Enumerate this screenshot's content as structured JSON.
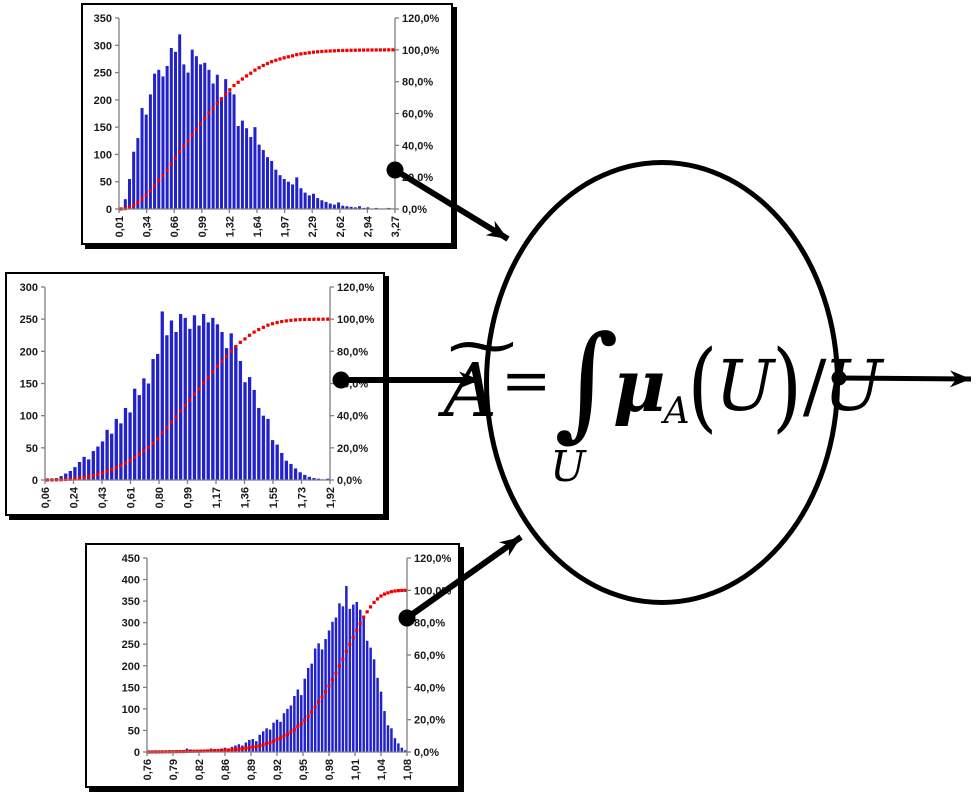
{
  "figure": {
    "formula": {
      "tilde": "~",
      "variable": "A",
      "equals": "=",
      "integral": "∫",
      "integral_lower_limit": "U",
      "mu": "μ",
      "mu_subscript": "A",
      "left_paren": "(",
      "argument": "U",
      "right_paren": ")",
      "slash": "/",
      "denominator": "U"
    },
    "colors": {
      "bars": "#2222cc",
      "cumulative": "#ee0000",
      "axis": "#808080",
      "label": "#1a1a1a",
      "ink": "#000000"
    }
  },
  "chart_data": [
    {
      "type": "bar",
      "subtype": "histogram-with-cumulative-percent-line",
      "title": "",
      "x_tick_labels": [
        "0,01",
        "0,34",
        "0,66",
        "0,99",
        "1,32",
        "1,64",
        "1,97",
        "2,29",
        "2,62",
        "2,94",
        "3,27"
      ],
      "left_axis_ticks": [
        "0",
        "50",
        "100",
        "150",
        "200",
        "250",
        "300",
        "350"
      ],
      "left_axis_max": 350,
      "right_axis_ticks": [
        "0,0%",
        "20,0%",
        "40,0%",
        "60,0%",
        "80,0%",
        "100,0%",
        "120,0%"
      ],
      "right_axis_max_percent": 120,
      "cumulative_final_percent": 100,
      "bars": [
        2,
        18,
        55,
        105,
        130,
        185,
        173,
        210,
        248,
        255,
        243,
        262,
        295,
        288,
        320,
        265,
        250,
        292,
        280,
        265,
        268,
        255,
        230,
        246,
        205,
        238,
        215,
        210,
        152,
        162,
        148,
        132,
        150,
        118,
        108,
        95,
        88,
        72,
        62,
        55,
        50,
        45,
        58,
        38,
        30,
        25,
        28,
        20,
        16,
        13,
        10,
        8,
        12,
        6,
        5,
        4,
        3,
        5,
        2,
        3,
        1,
        2,
        1,
        1,
        2,
        1
      ]
    },
    {
      "type": "bar",
      "subtype": "histogram-with-cumulative-percent-line",
      "title": "",
      "x_tick_labels": [
        "0,06",
        "0,24",
        "0,43",
        "0,61",
        "0,80",
        "0,99",
        "1,17",
        "1,36",
        "1,55",
        "1,73",
        "1,92"
      ],
      "left_axis_ticks": [
        "0",
        "50",
        "100",
        "150",
        "200",
        "250",
        "300"
      ],
      "left_axis_max": 300,
      "right_axis_ticks": [
        "0,0%",
        "20,0%",
        "40,0%",
        "60,0%",
        "80,0%",
        "100,0%",
        "120,0%"
      ],
      "right_axis_max_percent": 120,
      "cumulative_final_percent": 100,
      "bars": [
        1,
        2,
        3,
        6,
        10,
        14,
        20,
        28,
        36,
        32,
        45,
        52,
        60,
        78,
        72,
        95,
        88,
        112,
        105,
        142,
        132,
        158,
        150,
        188,
        196,
        262,
        225,
        248,
        230,
        258,
        252,
        235,
        256,
        240,
        258,
        245,
        252,
        242,
        230,
        205,
        228,
        208,
        185,
        152,
        160,
        140,
        112,
        100,
        95,
        62,
        55,
        42,
        30,
        25,
        18,
        12,
        8,
        5,
        3,
        2,
        1,
        2
      ]
    },
    {
      "type": "bar",
      "subtype": "histogram-with-cumulative-percent-line",
      "title": "",
      "x_tick_labels": [
        "0,76",
        "0,79",
        "0,82",
        "0,86",
        "0,89",
        "0,92",
        "0,95",
        "0,98",
        "1,01",
        "1,04",
        "1,08"
      ],
      "left_axis_ticks": [
        "0",
        "50",
        "100",
        "150",
        "200",
        "250",
        "300",
        "350",
        "400",
        "450"
      ],
      "left_axis_max": 450,
      "right_axis_ticks": [
        "0,0%",
        "20,0%",
        "40,0%",
        "60,0%",
        "80,0%",
        "100,0%",
        "120,0%"
      ],
      "right_axis_max_percent": 120,
      "cumulative_final_percent": 100,
      "bars": [
        2,
        1,
        2,
        1,
        2,
        3,
        2,
        1,
        2,
        3,
        2,
        8,
        6,
        3,
        2,
        4,
        3,
        5,
        8,
        6,
        5,
        8,
        10,
        8,
        12,
        15,
        18,
        15,
        22,
        28,
        30,
        25,
        40,
        48,
        55,
        52,
        68,
        75,
        70,
        90,
        100,
        108,
        130,
        145,
        132,
        170,
        195,
        205,
        240,
        252,
        238,
        262,
        282,
        302,
        312,
        345,
        338,
        385,
        332,
        342,
        348,
        330,
        312,
        258,
        242,
        215,
        172,
        140,
        95,
        62,
        55,
        32,
        20,
        10,
        4
      ]
    }
  ]
}
